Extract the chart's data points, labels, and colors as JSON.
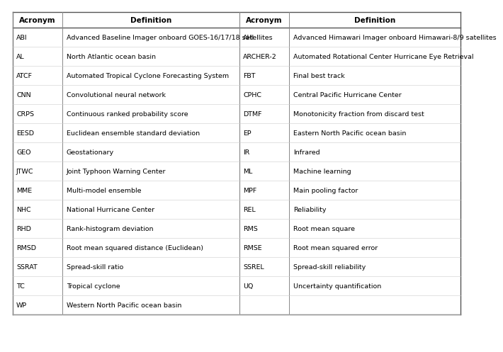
{
  "left_data": [
    [
      "ABI",
      "Advanced Baseline Imager onboard GOES-16/17/18 satellites"
    ],
    [
      "AL",
      "North Atlantic ocean basin"
    ],
    [
      "ATCF",
      "Automated Tropical Cyclone Forecasting System"
    ],
    [
      "CNN",
      "Convolutional neural network"
    ],
    [
      "CRPS",
      "Continuous ranked probability score"
    ],
    [
      "EESD",
      "Euclidean ensemble standard deviation"
    ],
    [
      "GEO",
      "Geostationary"
    ],
    [
      "JTWC",
      "Joint Typhoon Warning Center"
    ],
    [
      "MME",
      "Multi-model ensemble"
    ],
    [
      "NHC",
      "National Hurricane Center"
    ],
    [
      "RHD",
      "Rank-histogram deviation"
    ],
    [
      "RMSD",
      "Root mean squared distance (Euclidean)"
    ],
    [
      "SSRAT",
      "Spread-skill ratio"
    ],
    [
      "TC",
      "Tropical cyclone"
    ],
    [
      "WP",
      "Western North Pacific ocean basin"
    ]
  ],
  "right_data": [
    [
      "AHI",
      "Advanced Himawari Imager onboard Himawari-8/9 satellites"
    ],
    [
      "ARCHER-2",
      "Automated Rotational Center Hurricane Eye Retrieval"
    ],
    [
      "FBT",
      "Final best track"
    ],
    [
      "CPHC",
      "Central Pacific Hurricane Center"
    ],
    [
      "DTMF",
      "Monotonicity fraction from discard test"
    ],
    [
      "EP",
      "Eastern North Pacific ocean basin"
    ],
    [
      "IR",
      "Infrared"
    ],
    [
      "ML",
      "Machine learning"
    ],
    [
      "MPF",
      "Main pooling factor"
    ],
    [
      "REL",
      "Reliability"
    ],
    [
      "RMS",
      "Root mean square"
    ],
    [
      "RMSE",
      "Root mean squared error"
    ],
    [
      "SSREL",
      "Spread-skill reliability"
    ],
    [
      "UQ",
      "Uncertainty quantification"
    ],
    [
      "",
      ""
    ]
  ],
  "header": [
    "Acronym",
    "Definition",
    "Acronym",
    "Definition"
  ],
  "background_color": "#ffffff",
  "header_fontsize": 7.5,
  "body_fontsize": 6.8,
  "text_color": "#000000",
  "line_color": "#999999",
  "header_line_color": "#555555"
}
